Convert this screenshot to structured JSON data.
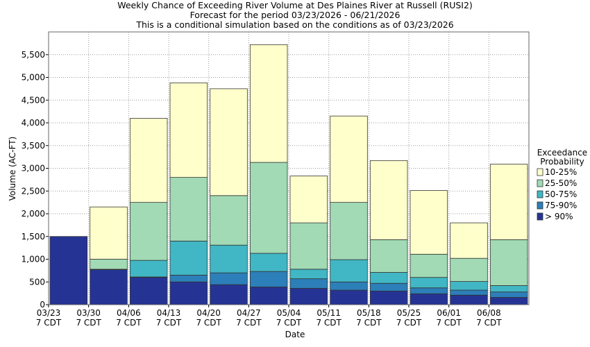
{
  "chart_data": {
    "type": "stacked_bar",
    "title": [
      "Weekly Chance of Exceeding River Volume at Des Plaines River at Russell (RUSI2)",
      "Forecast for the period 03/23/2026 - 06/21/2026",
      "This is a conditional simulation based on the conditions as of 03/23/2026"
    ],
    "x_label": "Date",
    "y_label": "Volume (AC-FT)",
    "categories": [
      "03/23",
      "03/30",
      "04/06",
      "04/13",
      "04/20",
      "04/27",
      "05/04",
      "05/11",
      "05/18",
      "05/25",
      "06/01",
      "06/08"
    ],
    "category_sublabel": "7 CDT",
    "legend_title": [
      "Exceedance",
      "Probability"
    ],
    "legend_position": "right",
    "grid": true,
    "ylim": [
      0,
      6000
    ],
    "yticks": [
      0,
      500,
      {
        "value": 1000,
        "label": "1,000"
      },
      {
        "value": 1500,
        "label": "1,500"
      },
      {
        "value": 2000,
        "label": "2,000"
      },
      {
        "value": 2500,
        "label": "2,500"
      },
      {
        "value": 3000,
        "label": "3,000"
      },
      {
        "value": 3500,
        "label": "3,500"
      },
      {
        "value": 4000,
        "label": "4,000"
      },
      {
        "value": 4500,
        "label": "4,500"
      },
      {
        "value": 5000,
        "label": "5,000"
      },
      {
        "value": 5500,
        "label": "5,500"
      }
    ],
    "series": [
      {
        "name": "> 90%",
        "color": "#253494",
        "values": [
          1500,
          770,
          600,
          500,
          440,
          390,
          360,
          320,
          300,
          240,
          210,
          160
        ]
      },
      {
        "name": "75-90%",
        "color": "#2c7fb8",
        "values": [
          0,
          10,
          10,
          150,
          260,
          340,
          210,
          180,
          170,
          130,
          110,
          120
        ]
      },
      {
        "name": "50-75%",
        "color": "#41b6c4",
        "values": [
          0,
          0,
          365,
          750,
          610,
          400,
          210,
          490,
          240,
          230,
          190,
          140
        ]
      },
      {
        "name": "25-50%",
        "color": "#a1dab4",
        "values": [
          0,
          220,
          1275,
          1400,
          1090,
          2000,
          1020,
          1260,
          720,
          510,
          510,
          1010
        ]
      },
      {
        "name": "10-25%",
        "color": "#ffffcc",
        "values": [
          0,
          1150,
          1850,
          2080,
          2350,
          2590,
          1030,
          1900,
          1740,
          1400,
          780,
          1660
        ]
      }
    ]
  }
}
